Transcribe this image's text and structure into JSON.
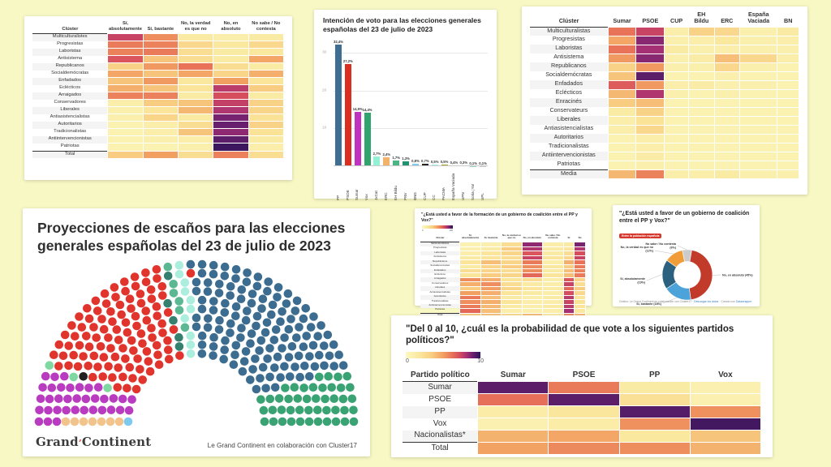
{
  "canvas": {
    "bg": "#f8f8c5"
  },
  "palette": {
    "heat_stops": [
      [
        0,
        "#fcf8c1"
      ],
      [
        18,
        "#fae89e"
      ],
      [
        35,
        "#f8cd82"
      ],
      [
        50,
        "#f2a062"
      ],
      [
        62,
        "#e87358"
      ],
      [
        72,
        "#d64d5e"
      ],
      [
        82,
        "#a63074"
      ],
      [
        90,
        "#681f6e"
      ],
      [
        100,
        "#2a1457"
      ]
    ]
  },
  "chart_data": [
    {
      "id": "coalicion_por_cluster",
      "type": "heatmap",
      "label_header": "Clúster",
      "columns": [
        "Sí, absolutamente",
        "Sí, bastante",
        "No, la verdad es que no",
        "No, en absoluto",
        "No sabe / No contesta"
      ],
      "rows": [
        "Multiculturalistes",
        "Progresistas",
        "Laboristas",
        "Antisistema",
        "Republicanos",
        "Socialdemócratas",
        "Enfadados",
        "Eclécticos",
        "Arraigados",
        "Conservadores",
        "Liberales",
        "Antiasistencialistas",
        "Autoritarios",
        "Tradicionalistas",
        "Antiintervencionistas",
        "Patriotas",
        "Total"
      ],
      "values": [
        [
          75,
          55,
          15,
          12,
          15
        ],
        [
          60,
          58,
          28,
          18,
          28
        ],
        [
          58,
          60,
          25,
          15,
          18
        ],
        [
          70,
          38,
          25,
          15,
          48
        ],
        [
          32,
          52,
          62,
          25,
          15
        ],
        [
          48,
          38,
          48,
          30,
          45
        ],
        [
          38,
          52,
          18,
          50,
          20
        ],
        [
          45,
          38,
          20,
          78,
          35
        ],
        [
          58,
          58,
          15,
          72,
          15
        ],
        [
          12,
          35,
          38,
          76,
          32
        ],
        [
          10,
          20,
          42,
          80,
          30
        ],
        [
          10,
          30,
          15,
          88,
          22
        ],
        [
          8,
          12,
          25,
          90,
          32
        ],
        [
          8,
          12,
          38,
          85,
          22
        ],
        [
          8,
          10,
          12,
          92,
          15
        ],
        [
          8,
          8,
          10,
          97,
          12
        ],
        [
          35,
          50,
          25,
          58,
          25
        ]
      ],
      "scale": [
        0,
        100
      ]
    },
    {
      "id": "intencion_voto",
      "type": "bar",
      "title": "Intención de voto para las elecciones generales españolas del 23 de julio de 2023",
      "categories": [
        "PP",
        "PSOE",
        "Sumar",
        "Vox",
        "JxCat",
        "ERC",
        "EH Bildu",
        "PNV",
        "BNG",
        "CUP",
        "CC",
        "PACMA",
        "España Vaciada",
        "UPN",
        "Soria ¡Ya!",
        "UPL"
      ],
      "values": [
        32.4,
        27.2,
        14.5,
        14.4,
        2.7,
        2.4,
        1.7,
        1.3,
        0.8,
        0.7,
        0.5,
        0.5,
        0.4,
        0.3,
        0.1,
        0.1
      ],
      "labels": [
        "32,4%",
        "27,2%",
        "14,5%",
        "14,4%",
        "2,7%",
        "2,4%",
        "1,7%",
        "1,3%",
        "0,8%",
        "0,7%",
        "0,5%",
        "0,5%",
        "0,4%",
        "0,3%",
        "0,1%",
        "0,1%"
      ],
      "colors": [
        "#3e6e92",
        "#d92e20",
        "#c032c0",
        "#30a46c",
        "#93f2d3",
        "#f2b26a",
        "#4cb583",
        "#23936f",
        "#7ec9ef",
        "#262626",
        "#a5ecec",
        "#a4a62e",
        "#2e8f74",
        "#d5372c",
        "#9ad8c8",
        "#cccccc"
      ],
      "yticks": [
        10,
        20,
        30
      ],
      "ymax": 34,
      "ylabel": "%"
    },
    {
      "id": "afinidad_partidos_por_cluster",
      "type": "heatmap",
      "label_header": "Clúster",
      "columns": [
        "Sumar",
        "PSOE",
        "CUP",
        "EH Bildu",
        "ERC",
        "España Vaciada",
        "BN"
      ],
      "rows": [
        "Multiculturalistas",
        "Progresistas",
        "Laboristas",
        "Antisistema",
        "Republicanos",
        "Socialdemócratas",
        "Enfadados",
        "Eclécticos",
        "Enracinés",
        "Conservateurs",
        "Liberales",
        "Antiasistencialistas",
        "Autoritarios",
        "Tradicionalistas",
        "Antiintervencionistas",
        "Patriotas",
        "Media"
      ],
      "values": [
        [
          62,
          75,
          12,
          32,
          28,
          10,
          15
        ],
        [
          48,
          86,
          10,
          12,
          18,
          10,
          12
        ],
        [
          62,
          82,
          15,
          10,
          12,
          10,
          10
        ],
        [
          52,
          86,
          10,
          14,
          40,
          28,
          12
        ],
        [
          32,
          52,
          10,
          10,
          28,
          10,
          8
        ],
        [
          38,
          92,
          8,
          8,
          10,
          8,
          8
        ],
        [
          68,
          52,
          12,
          14,
          10,
          10,
          8
        ],
        [
          42,
          80,
          10,
          8,
          10,
          8,
          8
        ],
        [
          35,
          40,
          8,
          8,
          8,
          8,
          8
        ],
        [
          15,
          32,
          8,
          8,
          8,
          8,
          8
        ],
        [
          12,
          22,
          8,
          8,
          8,
          8,
          8
        ],
        [
          12,
          28,
          8,
          8,
          8,
          8,
          8
        ],
        [
          8,
          12,
          8,
          8,
          8,
          8,
          8
        ],
        [
          8,
          12,
          8,
          8,
          8,
          8,
          8
        ],
        [
          8,
          14,
          8,
          8,
          8,
          8,
          8
        ],
        [
          8,
          10,
          8,
          8,
          8,
          8,
          8
        ],
        [
          42,
          58,
          12,
          12,
          15,
          10,
          10
        ]
      ],
      "scale": [
        0,
        100
      ]
    },
    {
      "id": "proyeccion_escanos",
      "type": "parliament",
      "title": "Proyecciones de escaños para las elecciones generales españolas del 23 de julio de 2023",
      "total_seats": 350,
      "parties": [
        {
          "name": "BNG",
          "seats": 1,
          "color": "#7ec9ef"
        },
        {
          "name": "ERC",
          "seats": 7,
          "color": "#f2c48c"
        },
        {
          "name": "Sumar",
          "seats": 35,
          "color": "#b93cc0"
        },
        {
          "name": "España Vaciada",
          "seats": 3,
          "color": "#7fd7a1"
        },
        {
          "name": "CUP",
          "seats": 1,
          "color": "#222222"
        },
        {
          "name": "PSOE",
          "seats": 103,
          "color": "#e0342c"
        },
        {
          "name": "EH Bildu",
          "seats": 5,
          "color": "#35806e"
        },
        {
          "name": "PNV",
          "seats": 6,
          "color": "#5cb893"
        },
        {
          "name": "JxCat",
          "seats": 10,
          "color": "#aceedd"
        },
        {
          "name": "UPN",
          "seats": 1,
          "color": "#e0342c"
        },
        {
          "name": "PP",
          "seats": 133,
          "color": "#3c6d90"
        },
        {
          "name": "Vox",
          "seats": 45,
          "color": "#3aa374"
        }
      ],
      "logo": {
        "part1": "Grand",
        "accent": "’",
        "part2": "Continent"
      },
      "caption": "Le Grand Continent en colaboración con Cluster17"
    },
    {
      "id": "coalicion_pp_vox_por_cluster",
      "type": "heatmap",
      "title": "\"¿Está usted a favor de la formación de un gobierno de coalición entre el PP y Vox?\"",
      "legend": {
        "min": "0",
        "max": "100"
      },
      "label_header": "Clúster",
      "columns": [
        "Sí, absolutamente",
        "Sí, bastante",
        "No, la verdad es que no",
        "No, en absoluto",
        "No sabe / No contesta",
        "Sí",
        "No"
      ],
      "rows": [
        "Multiculturalistas",
        "Progresistas",
        "Laboristas",
        "Antisistema",
        "Republicanos",
        "Socialdemócratas",
        "Enfadados",
        "Eclécticos",
        "Arraigados",
        "Conservadores",
        "Liberales",
        "Antiasistencialistas",
        "Autoritarios",
        "Tradicionalistas",
        "Antiintervencionistas",
        "Patriotas",
        "Total"
      ],
      "values": [
        [
          8,
          10,
          25,
          85,
          12,
          15,
          88
        ],
        [
          10,
          15,
          35,
          80,
          15,
          20,
          80
        ],
        [
          12,
          20,
          30,
          70,
          15,
          25,
          72
        ],
        [
          15,
          20,
          25,
          75,
          20,
          28,
          75
        ],
        [
          20,
          40,
          30,
          60,
          12,
          45,
          62
        ],
        [
          15,
          30,
          35,
          55,
          18,
          35,
          60
        ],
        [
          25,
          30,
          25,
          55,
          15,
          40,
          58
        ],
        [
          20,
          35,
          30,
          65,
          20,
          40,
          60
        ],
        [
          55,
          45,
          20,
          25,
          12,
          70,
          30
        ],
        [
          45,
          55,
          25,
          15,
          12,
          75,
          25
        ],
        [
          35,
          50,
          30,
          20,
          15,
          65,
          35
        ],
        [
          50,
          45,
          20,
          15,
          12,
          72,
          28
        ],
        [
          60,
          40,
          15,
          12,
          15,
          78,
          20
        ],
        [
          55,
          45,
          20,
          12,
          12,
          75,
          22
        ],
        [
          60,
          42,
          15,
          12,
          15,
          78,
          20
        ],
        [
          65,
          40,
          12,
          10,
          12,
          82,
          18
        ],
        [
          35,
          38,
          25,
          40,
          14,
          55,
          42
        ]
      ],
      "scale": [
        0,
        100
      ]
    },
    {
      "id": "coalicion_pp_vox_total",
      "type": "donut",
      "title": "\"¿Está usted a favor de un gobierno de coalición entre el PP y Vox?\"",
      "badge": "Entre la población española",
      "slices": [
        {
          "label": "No, en absoluto",
          "pct": 45,
          "color": "#c23b2a"
        },
        {
          "label": "Sí, bastante",
          "pct": 18,
          "color": "#4ba3d9"
        },
        {
          "label": "Sí, absolutamente",
          "pct": 19,
          "color": "#2b607f"
        },
        {
          "label": "No, la verdad es que no",
          "pct": 12,
          "color": "#f09c38"
        },
        {
          "label": "No sabe / No contesta",
          "pct": 6,
          "color": "#cbcbcb"
        }
      ],
      "footer": {
        "text1": "Gráfico: Le Grand Continent en colaboración con Cluster17 · ",
        "link1": "Descargar los datos",
        "text2": " · Creado con ",
        "link2": "Datawrapper"
      }
    },
    {
      "id": "probabilidad_voto_partidos",
      "type": "heatmap",
      "title": "\"Del 0 al 10, ¿cuál es la probabilidad de que vote a los siguientes partidos políticos?\"",
      "legend": {
        "min": "0",
        "max": "10"
      },
      "label_header": "Partido político",
      "columns": [
        "Sumar",
        "PSOE",
        "PP",
        "Vox"
      ],
      "rows": [
        "Sumar",
        "PSOE",
        "PP",
        "Vox",
        "Nacionalistas*",
        "Total"
      ],
      "values": [
        [
          9.2,
          6.0,
          1.5,
          0.9
        ],
        [
          6.3,
          9.2,
          2.3,
          0.9
        ],
        [
          1.3,
          1.9,
          9.3,
          5.4
        ],
        [
          0.9,
          1.3,
          5.4,
          9.6
        ],
        [
          4.4,
          4.8,
          1.8,
          3.8
        ],
        [
          4.9,
          5.6,
          5.5,
          4.4
        ]
      ],
      "scale": [
        0,
        10
      ]
    }
  ]
}
